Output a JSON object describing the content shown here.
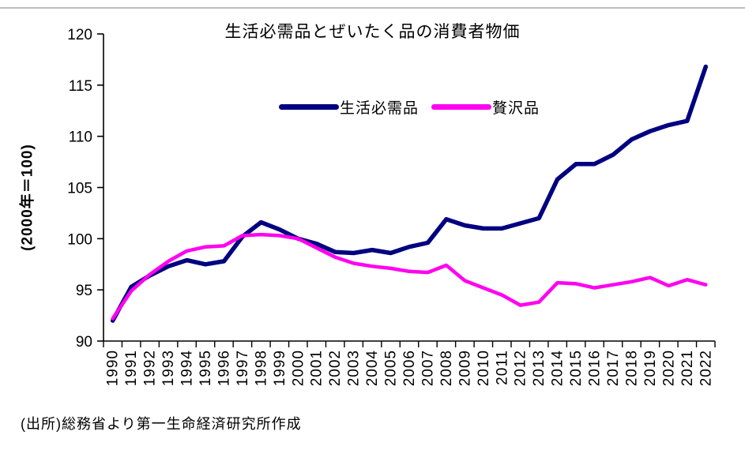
{
  "page": {
    "top_divider_color": "#bdbdbd",
    "background": "#ffffff"
  },
  "chart_data": {
    "type": "line",
    "title": "生活必需品とぜいたく品の消費者物価",
    "y_axis_title": "(2000年＝100)",
    "xlabel": "",
    "ylabel": "(2000年＝100)",
    "ylim": [
      90,
      120
    ],
    "y_ticks": [
      90,
      95,
      100,
      105,
      110,
      115,
      120
    ],
    "grid": false,
    "legend_position": "top-center",
    "categories": [
      "1990",
      "1991",
      "1992",
      "1993",
      "1994",
      "1995",
      "1996",
      "1997",
      "1998",
      "1999",
      "2000",
      "2001",
      "2002",
      "2003",
      "2004",
      "2005",
      "2006",
      "2007",
      "2008",
      "2009",
      "2010",
      "2011",
      "2012",
      "2013",
      "2014",
      "2015",
      "2016",
      "2017",
      "2018",
      "2019",
      "2020",
      "2021",
      "2022"
    ],
    "series": [
      {
        "name": "生活必需品",
        "color": "#000080",
        "line_width": 5.5,
        "values": [
          92.0,
          95.3,
          96.4,
          97.3,
          97.9,
          97.5,
          97.8,
          100.2,
          101.6,
          100.9,
          100.0,
          99.5,
          98.7,
          98.6,
          98.9,
          98.6,
          99.2,
          99.6,
          101.9,
          101.3,
          101.0,
          101.0,
          101.5,
          102.0,
          105.8,
          107.3,
          107.3,
          108.2,
          109.7,
          110.5,
          111.1,
          111.5,
          116.8
        ]
      },
      {
        "name": "贅沢品",
        "color": "#ff00f0",
        "line_width": 4.5,
        "values": [
          92.2,
          94.9,
          96.5,
          97.8,
          98.8,
          99.2,
          99.3,
          100.3,
          100.4,
          100.3,
          100.0,
          99.1,
          98.2,
          97.6,
          97.3,
          97.1,
          96.8,
          96.7,
          97.4,
          95.9,
          95.2,
          94.5,
          93.5,
          93.8,
          95.7,
          95.6,
          95.2,
          95.5,
          95.8,
          96.2,
          95.4,
          96.0,
          95.5
        ]
      }
    ]
  },
  "source_note": "(出所)総務省より第一生命経済研究所作成"
}
